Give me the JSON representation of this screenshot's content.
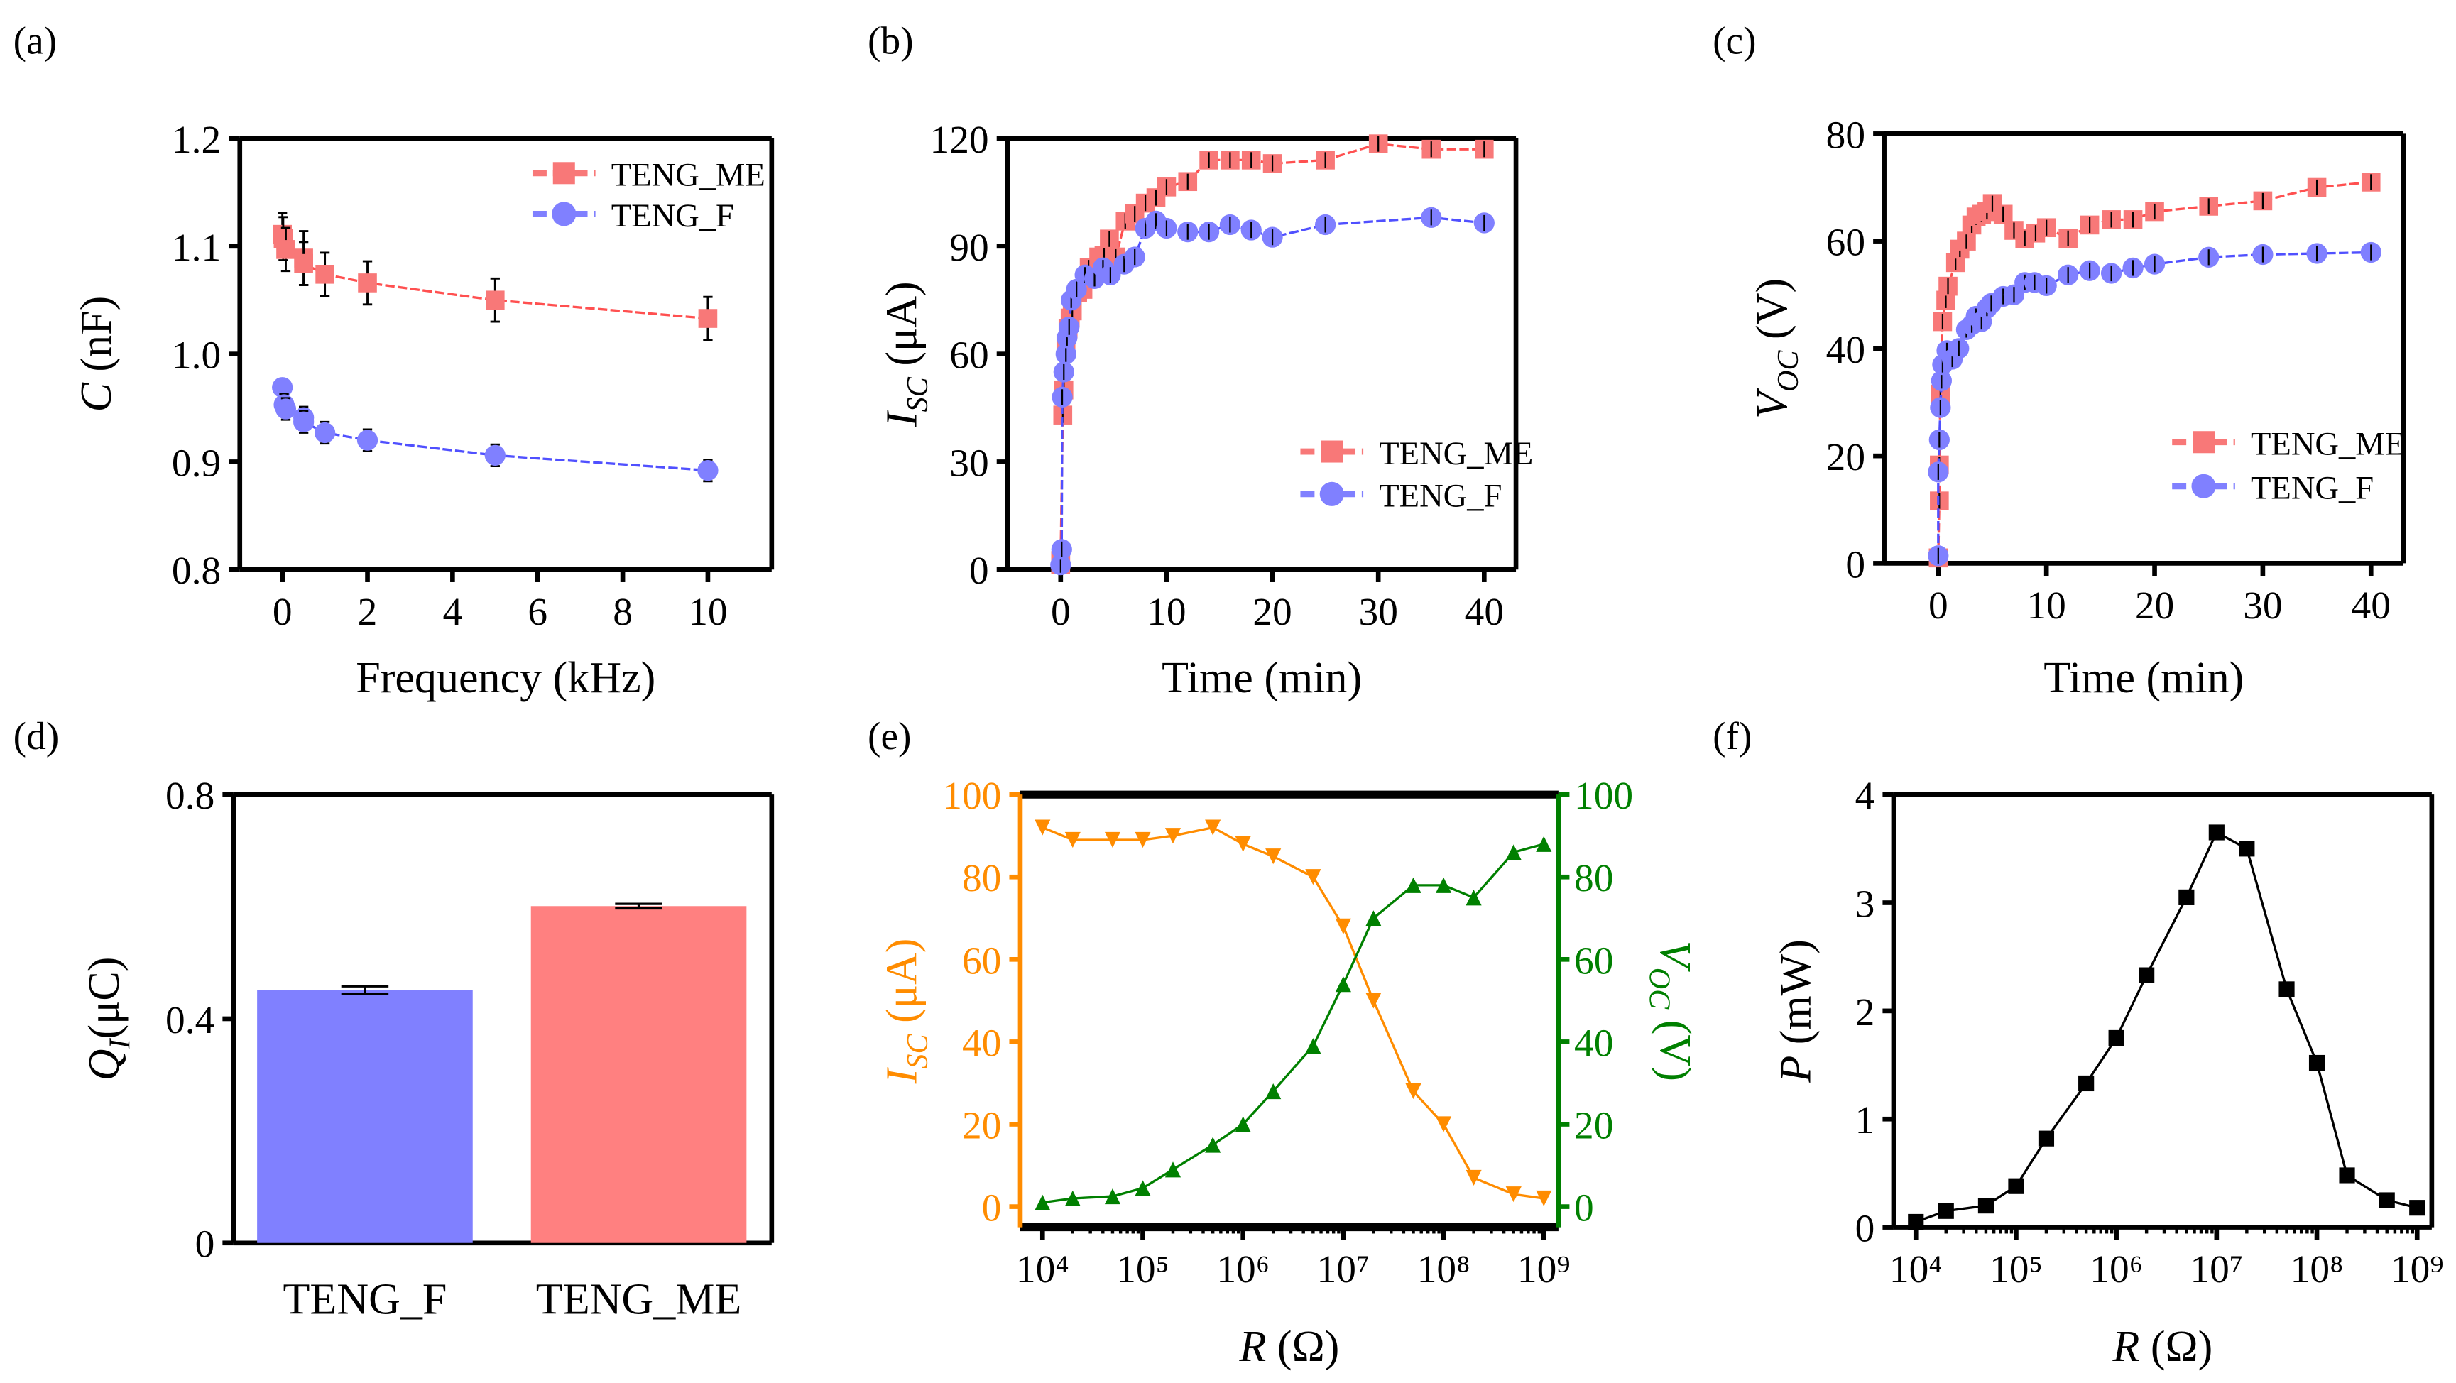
{
  "chart_data": [
    {
      "panel": "(a)",
      "type": "line",
      "xlabel": "Frequency (kHz)",
      "ylabel": {
        "sym": "C",
        "sub": "",
        "unit": " (nF)"
      },
      "xlim": [
        -1,
        11.5
      ],
      "ylim": [
        0.8,
        1.2
      ],
      "xticks": [
        0,
        2,
        4,
        6,
        8,
        10
      ],
      "xtick_labels": [
        "0",
        "2",
        "4",
        "6",
        "8",
        "10"
      ],
      "yticks": [
        0.8,
        0.9,
        1.0,
        1.1,
        1.2
      ],
      "ytick_labels": [
        "0.8",
        "0.9",
        "1.0",
        "1.1",
        "1.2"
      ],
      "legend": "top-right",
      "series": [
        {
          "name": "TENG_ME",
          "color": "#f87878",
          "line": "#ff5050",
          "marker": "square",
          "x": [
            0,
            0.02,
            0.08,
            0.5,
            0.5,
            1,
            2,
            5,
            10
          ],
          "y": [
            1.111,
            1.107,
            1.097,
            1.089,
            1.084,
            1.074,
            1.066,
            1.05,
            1.033
          ],
          "err": [
            0.02,
            0.02,
            0.02,
            0.025,
            0.02,
            0.02,
            0.02,
            0.02,
            0.02
          ]
        },
        {
          "name": "TENG_F",
          "color": "#8080ff",
          "line": "#5050ff",
          "marker": "circle",
          "x": [
            0,
            0.04,
            0.08,
            0.5,
            0.5,
            1,
            2,
            5,
            10
          ],
          "y": [
            0.969,
            0.953,
            0.949,
            0.941,
            0.937,
            0.927,
            0.92,
            0.906,
            0.892
          ],
          "err": [
            0.008,
            0.01,
            0.01,
            0.01,
            0.01,
            0.01,
            0.01,
            0.01,
            0.01
          ]
        }
      ]
    },
    {
      "panel": "(b)",
      "type": "line",
      "xlabel": "Time (min)",
      "ylabel": {
        "sym": "I",
        "sub": "SC",
        "unit": " (μA)"
      },
      "xlim": [
        -5,
        43
      ],
      "ylim": [
        0,
        120
      ],
      "xticks": [
        0,
        10,
        20,
        30,
        40
      ],
      "xtick_labels": [
        "0",
        "10",
        "20",
        "30",
        "40"
      ],
      "yticks": [
        0,
        30,
        60,
        90,
        120
      ],
      "ytick_labels": [
        "0",
        "30",
        "60",
        "90",
        "120"
      ],
      "legend": "bottom-right",
      "series": [
        {
          "name": "TENG_ME",
          "color": "#f87878",
          "line": "#ff5050",
          "marker": "square",
          "x": [
            0,
            0,
            0.2,
            0.3,
            0.5,
            0.7,
            0.9,
            1.1,
            1.6,
            2.1,
            2.7,
            3.6,
            4.1,
            4.6,
            5.2,
            6.1,
            7,
            8,
            9,
            10,
            12,
            14,
            16,
            18,
            20,
            25,
            30,
            35,
            40
          ],
          "y": [
            1.3,
            2.5,
            43,
            50,
            63,
            67,
            70,
            72,
            77,
            78,
            84,
            87,
            87.5,
            92,
            87,
            97,
            99,
            102,
            103.5,
            106.5,
            108,
            114,
            114,
            114,
            113,
            114,
            118.5,
            117,
            117
          ]
        },
        {
          "name": "TENG_F",
          "color": "#8080ff",
          "line": "#5050ff",
          "marker": "circle",
          "x": [
            0,
            0.1,
            0.15,
            0.3,
            0.5,
            0.6,
            0.8,
            1,
            1.5,
            2.3,
            3.2,
            4,
            4.7,
            6,
            7,
            8,
            9,
            10,
            12,
            14,
            16,
            18,
            20,
            25,
            35,
            40
          ],
          "y": [
            1.3,
            5.6,
            48,
            55,
            60,
            64.5,
            67.5,
            75,
            78,
            82,
            81,
            84,
            82,
            85,
            87,
            95,
            97,
            95,
            94,
            94,
            96,
            94.5,
            92.5,
            96,
            98,
            96.5
          ]
        }
      ]
    },
    {
      "panel": "(c)",
      "type": "line",
      "xlabel": "Time (min)",
      "ylabel": {
        "sym": "V",
        "sub": "OC",
        "unit": " (V)"
      },
      "xlim": [
        -5,
        43
      ],
      "ylim": [
        0,
        80
      ],
      "xticks": [
        0,
        10,
        20,
        30,
        40
      ],
      "xtick_labels": [
        "0",
        "10",
        "20",
        "30",
        "40"
      ],
      "yticks": [
        0,
        20,
        40,
        60,
        80
      ],
      "ytick_labels": [
        "0",
        "20",
        "40",
        "60",
        "80"
      ],
      "legend": "bottom-right",
      "series": [
        {
          "name": "TENG_ME",
          "color": "#f87878",
          "line": "#ff5050",
          "marker": "square",
          "x": [
            0,
            0.1,
            0.1,
            0.2,
            0.4,
            0.7,
            0.9,
            1.6,
            2,
            2.6,
            3.1,
            3.5,
            4,
            4.5,
            5,
            6,
            7,
            8,
            9,
            10,
            12,
            14,
            16,
            18,
            20,
            25,
            30,
            35,
            40
          ],
          "y": [
            1,
            11.6,
            18.3,
            31.5,
            45,
            49,
            51.6,
            56,
            58.5,
            60,
            63,
            64.5,
            65,
            65.5,
            67,
            65,
            62,
            60.5,
            61.5,
            62.5,
            60.5,
            63,
            64,
            64,
            65.5,
            66.5,
            67.5,
            70,
            71
          ]
        },
        {
          "name": "TENG_F",
          "color": "#8080ff",
          "line": "#5050ff",
          "marker": "circle",
          "x": [
            0,
            0,
            0.1,
            0.2,
            0.3,
            0.4,
            0.8,
            1.3,
            1.9,
            2.6,
            3.1,
            3.5,
            4,
            4.5,
            4.9,
            6,
            7,
            8,
            8.9,
            10,
            12,
            14,
            16,
            18,
            20,
            25,
            30,
            35,
            40
          ],
          "y": [
            1.4,
            17,
            23,
            29,
            34,
            37,
            39.6,
            38,
            40,
            43.5,
            44.4,
            46,
            45,
            47.5,
            48.4,
            49.7,
            50,
            52.3,
            52.3,
            51.7,
            53.7,
            54.5,
            54,
            55,
            55.7,
            57,
            57.5,
            57.7,
            57.9
          ]
        }
      ]
    },
    {
      "panel": "(d)",
      "type": "bar",
      "ylabel": {
        "sym": "Q",
        "sub": "I",
        "unit": "(μC)"
      },
      "ylim": [
        0,
        0.8
      ],
      "yticks": [
        0,
        0.4,
        0.8
      ],
      "ytick_labels": [
        "0",
        "0.4",
        "0.8"
      ],
      "categories": [
        "TENG_F",
        "TENG_ME"
      ],
      "values": [
        0.451,
        0.601
      ],
      "err": [
        0.007,
        0.004
      ],
      "colors": [
        "#8080ff",
        "#ff8080"
      ]
    },
    {
      "panel": "(e)",
      "type": "line",
      "xlabel": {
        "sym": "R",
        "unit": " (Ω)"
      },
      "xscale": "log",
      "xlim": [
        6000,
        1400000000
      ],
      "xticks": [
        10000,
        100000,
        1000000,
        10000000,
        100000000,
        1000000000
      ],
      "xtick_labels": [
        "10⁴",
        "10⁵",
        "10⁶",
        "10⁷",
        "10⁸",
        "10⁹"
      ],
      "ylabel": {
        "sym": "I",
        "sub": "SC",
        "unit": " (μA)",
        "color": "#ff8c00"
      },
      "ylim": [
        -5,
        100
      ],
      "yticks": [
        0,
        20,
        40,
        60,
        80,
        100
      ],
      "ytick_labels": [
        "0",
        "20",
        "40",
        "60",
        "80",
        "100"
      ],
      "y2label": {
        "sym": "V",
        "sub": "OC",
        "unit": " (V)",
        "color": "#008000"
      },
      "y2lim": [
        -5,
        100
      ],
      "y2ticks": [
        0,
        20,
        40,
        60,
        80,
        100
      ],
      "y2tick_labels": [
        "0",
        "20",
        "40",
        "60",
        "80",
        "100"
      ],
      "series": [
        {
          "axis": "left",
          "color": "#ff8c00",
          "line": "#ff8c00",
          "marker": "triangle-down",
          "x": [
            10000,
            20000,
            50000,
            100000,
            200000,
            500000,
            1000000,
            2000000,
            5000000,
            10000000,
            20000000,
            50000000,
            100000000,
            200000000,
            500000000,
            1000000000
          ],
          "y": [
            92,
            89,
            89,
            89,
            90,
            92,
            88,
            85,
            80,
            68,
            50,
            28,
            20,
            7,
            3,
            2
          ]
        },
        {
          "axis": "right",
          "color": "#008000",
          "line": "#008000",
          "marker": "triangle-up",
          "x": [
            10000,
            20000,
            50000,
            100000,
            200000,
            500000,
            1000000,
            2000000,
            5000000,
            10000000,
            20000000,
            50000000,
            100000000,
            200000000,
            500000000,
            1000000000
          ],
          "y": [
            1,
            2,
            2.5,
            4.5,
            9,
            15,
            20,
            28,
            39,
            54,
            70,
            78,
            78,
            75,
            86,
            88
          ]
        }
      ]
    },
    {
      "panel": "(f)",
      "type": "line",
      "xlabel": {
        "sym": "R",
        "unit": " (Ω)"
      },
      "xscale": "log",
      "xlim": [
        6000,
        1400000000
      ],
      "xticks": [
        10000,
        100000,
        1000000,
        10000000,
        100000000,
        1000000000
      ],
      "xtick_labels": [
        "10⁴",
        "10⁵",
        "10⁶",
        "10⁷",
        "10⁸",
        "10⁹"
      ],
      "ylabel": {
        "sym": "P",
        "sub": "",
        "unit": " (mW)"
      },
      "ylim": [
        0,
        4
      ],
      "yticks": [
        0,
        1,
        2,
        3,
        4
      ],
      "ytick_labels": [
        "0",
        "1",
        "2",
        "3",
        "4"
      ],
      "series": [
        {
          "color": "#000000",
          "line": "#000000",
          "marker": "square",
          "x": [
            10000,
            20000,
            50000,
            100000,
            200000,
            500000,
            1000000,
            2000000,
            5000000,
            10000000,
            20000000,
            50000000,
            100000000,
            200000000,
            500000000,
            1000000000
          ],
          "y": [
            0.05,
            0.15,
            0.2,
            0.38,
            0.82,
            1.33,
            1.75,
            2.33,
            3.05,
            3.65,
            3.5,
            2.2,
            1.52,
            0.48,
            0.25,
            0.18
          ]
        }
      ]
    }
  ]
}
